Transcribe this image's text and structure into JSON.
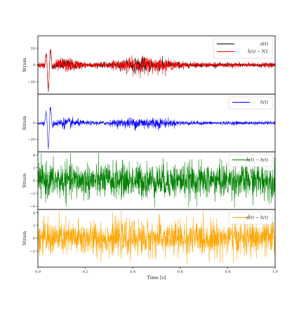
{
  "chart_data": {
    "type": "line",
    "xlabel": "Time [s]",
    "xlim": [
      0,
      1.0
    ],
    "x_ticks": [
      "0.0",
      "0.2",
      "0.4",
      "0.6",
      "0.8",
      "1.0"
    ],
    "panels": [
      {
        "ylabel": "Strain",
        "ylim": [
          -35,
          35
        ],
        "y_ticks": [
          {
            "v": 20,
            "t": "20"
          },
          {
            "v": 0,
            "t": "0"
          },
          {
            "v": -20,
            "t": "−20"
          }
        ],
        "legend_position": "top-right",
        "series": [
          {
            "name": "d(t)",
            "color": "#000000",
            "noise_amp": 2.2,
            "glitch_amp": 30,
            "wave": "burst"
          },
          {
            "name": "ĥ(t) − N1",
            "color": "#ff0000",
            "noise_amp": 2.6,
            "glitch_amp": 30,
            "wave": "burst"
          }
        ]
      },
      {
        "ylabel": "Strain",
        "ylim": [
          -35,
          35
        ],
        "y_ticks": [
          {
            "v": 0,
            "t": "0"
          },
          {
            "v": -20,
            "t": "−20"
          }
        ],
        "legend_position": "top-right",
        "series": [
          {
            "name": "h(t)",
            "color": "#0000ff",
            "noise_amp": 2.0,
            "glitch_amp": 30,
            "wave": "burst"
          }
        ]
      },
      {
        "ylabel": "Strain",
        "ylim": [
          -4.5,
          4.5
        ],
        "y_ticks": [
          {
            "v": 4,
            "t": "4"
          },
          {
            "v": 2,
            "t": "2"
          },
          {
            "v": 0,
            "t": "0"
          },
          {
            "v": -2,
            "t": "−2"
          },
          {
            "v": -4,
            "t": "−4"
          }
        ],
        "legend_position": "top-right",
        "series": [
          {
            "name": "ĥ(t) − h(t)",
            "color": "#008000",
            "noise_amp": 1.6,
            "glitch_amp": 0,
            "wave": "noise"
          }
        ]
      },
      {
        "ylabel": "Strain",
        "ylim": [
          -4.5,
          4.5
        ],
        "y_ticks": [
          {
            "v": 4,
            "t": "4"
          },
          {
            "v": 2,
            "t": "2"
          },
          {
            "v": 0,
            "t": "0"
          },
          {
            "v": -2,
            "t": "−2"
          }
        ],
        "legend_position": "top-right",
        "series": [
          {
            "name": "d̂(t) − h(t)",
            "color": "#ffa500",
            "noise_amp": 1.6,
            "glitch_amp": 0,
            "wave": "noise"
          }
        ]
      }
    ]
  }
}
